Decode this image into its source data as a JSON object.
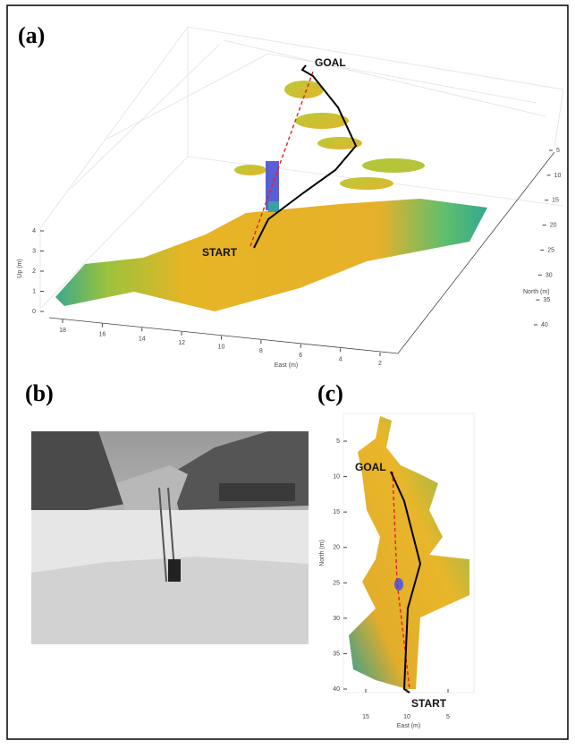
{
  "panels": [
    {
      "label": "(a)",
      "goal": "GOAL",
      "start": "START",
      "up_label": "Up (m)",
      "up_ticks": [
        0,
        1,
        2,
        3,
        4
      ],
      "east_label": "East (m)",
      "east_ticks": [
        18,
        16,
        14,
        12,
        10,
        8,
        6,
        4,
        2
      ],
      "north_label": "North (m)",
      "north_ticks": [
        5,
        10,
        15,
        20,
        25,
        30,
        35,
        40
      ]
    },
    {
      "label": "(b)"
    },
    {
      "label": "(c)",
      "goal": "GOAL",
      "start": "START",
      "north_label": "North (m)",
      "north_ticks": [
        5,
        10,
        15,
        20,
        25,
        30,
        35,
        40
      ],
      "east_label": "East (m)",
      "east_ticks": [
        15,
        10,
        5
      ]
    }
  ]
}
